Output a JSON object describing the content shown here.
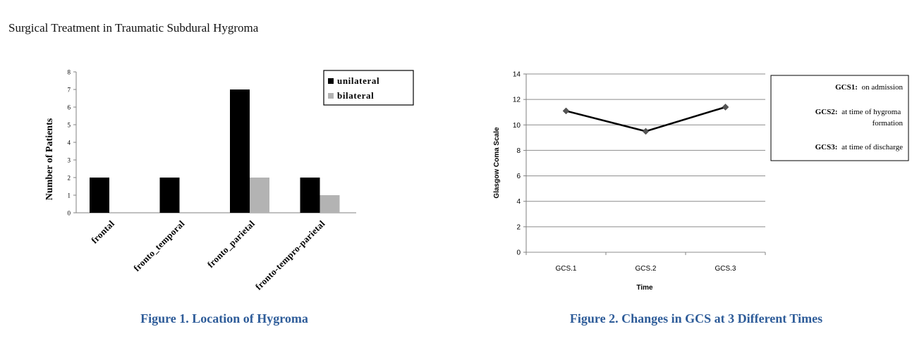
{
  "page_title": "Surgical Treatment in Traumatic Subdural Hygroma",
  "colors": {
    "unilateral": "#000000",
    "bilateral": "#b3b3b3",
    "caption": "#2e5c99",
    "line": "#000000",
    "marker": "#555555"
  },
  "chart_data": [
    {
      "type": "bar",
      "title": "Figure 1.  Location of Hygroma",
      "ylabel": "Number of Patients",
      "xlabel": "",
      "ylim": [
        0,
        8
      ],
      "yticks": [
        0,
        1,
        2,
        3,
        4,
        5,
        6,
        7,
        8
      ],
      "categories": [
        "frontal",
        "fronto_temporal",
        "fronto_parietal",
        "fronto-tempro-parietal"
      ],
      "series": [
        {
          "name": "unilateral",
          "values": [
            2,
            2,
            7,
            2
          ]
        },
        {
          "name": "bilateral",
          "values": [
            0,
            0,
            2,
            1
          ]
        }
      ],
      "legend": "top-right",
      "grid": false
    },
    {
      "type": "line",
      "title": "Figure 2. Changes in GCS at 3 Different Times",
      "xlabel": "Time",
      "ylabel": "Glasgow Coma Scale",
      "ylim": [
        0,
        14
      ],
      "yticks": [
        0,
        2,
        4,
        6,
        8,
        10,
        12,
        14
      ],
      "categories": [
        "GCS.1",
        "GCS.2",
        "GCS.3"
      ],
      "series": [
        {
          "values": [
            11.1,
            9.5,
            11.4
          ]
        }
      ],
      "grid": true,
      "legend": "right",
      "notes": [
        {
          "key": "GCS1:",
          "text": "on admission"
        },
        {
          "key": "GCS2:",
          "text": "at time of hygroma formation"
        },
        {
          "key": "GCS3:",
          "text": "at time of discharge"
        }
      ]
    }
  ]
}
